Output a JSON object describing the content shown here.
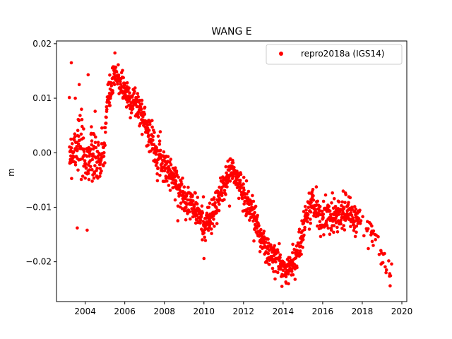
{
  "chart_data": {
    "type": "scatter",
    "title": "WANG E",
    "xlabel": "",
    "ylabel": "m",
    "xlim": [
      2002.55,
      2020.25
    ],
    "ylim": [
      -0.0273,
      0.0205
    ],
    "xticks": [
      2004,
      2006,
      2008,
      2010,
      2012,
      2014,
      2016,
      2018,
      2020
    ],
    "yticks": [
      -0.02,
      -0.01,
      0.0,
      0.01,
      0.02
    ],
    "ytick_labels": [
      "−0.02",
      "−0.01",
      "0.00",
      "0.01",
      "0.02"
    ],
    "grid": false,
    "legend_position": "upper-right",
    "series": [
      {
        "name": "repro2018a (IGS14)",
        "color": "#ff0000",
        "marker": "circle",
        "trend": {
          "x": [
            2003.2,
            2003.6,
            2004.0,
            2004.5,
            2004.9,
            2005.1,
            2005.5,
            2005.8,
            2006.2,
            2006.6,
            2007.0,
            2007.5,
            2008.0,
            2008.5,
            2009.0,
            2009.5,
            2010.0,
            2010.4,
            2010.8,
            2011.1,
            2011.4,
            2011.8,
            2012.2,
            2012.6,
            2013.0,
            2013.4,
            2013.8,
            2014.1,
            2014.5,
            2014.8,
            2015.1,
            2015.5,
            2015.9,
            2016.2,
            2016.6,
            2017.0,
            2017.3,
            2017.6,
            2017.9,
            2018.3,
            2018.8,
            2019.2,
            2019.5
          ],
          "y": [
            0.0,
            0.002,
            -0.001,
            -0.001,
            -0.002,
            0.009,
            0.014,
            0.013,
            0.01,
            0.009,
            0.006,
            0.001,
            -0.002,
            -0.005,
            -0.008,
            -0.01,
            -0.013,
            -0.012,
            -0.008,
            -0.005,
            -0.003,
            -0.006,
            -0.009,
            -0.012,
            -0.017,
            -0.019,
            -0.02,
            -0.022,
            -0.02,
            -0.018,
            -0.012,
            -0.009,
            -0.012,
            -0.012,
            -0.011,
            -0.011,
            -0.011,
            -0.012,
            -0.013,
            -0.015,
            -0.017,
            -0.021,
            -0.023
          ]
        },
        "outliers": {
          "x": [
            2003.3,
            2003.5,
            2003.7,
            2004.15,
            2003.6,
            2005.5,
            2010.0,
            2004.1
          ],
          "y": [
            0.0165,
            0.01,
            0.0125,
            0.0143,
            -0.0138,
            0.0183,
            -0.0194,
            -0.0142
          ]
        }
      }
    ]
  }
}
